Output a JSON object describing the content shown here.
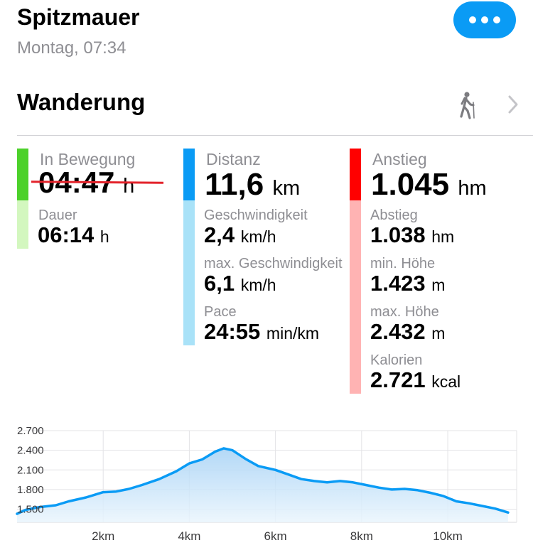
{
  "header": {
    "title": "Spitzmauer",
    "subtitle": "Montag, 07:34",
    "more_icon": "more-dots-icon"
  },
  "activity": {
    "type": "Wanderung",
    "icon": "hiker-icon",
    "chevron_icon": "chevron-right-icon"
  },
  "colors": {
    "accent_blue": "#0a9bf5",
    "green": "#4cd12a",
    "green_light": "#d3f7bf",
    "blue_light": "#a9e2f8",
    "red": "#ff0000",
    "red_light": "#ffb3b3",
    "strike_red": "#e3232b"
  },
  "stats": {
    "moving": {
      "label": "In Bewegung",
      "value": "04:47",
      "unit": "h"
    },
    "duration": {
      "label": "Dauer",
      "value": "06:14",
      "unit": "h"
    },
    "distance": {
      "label": "Distanz",
      "value": "11,6",
      "unit": "km"
    },
    "speed": {
      "label": "Geschwindigkeit",
      "value": "2,4",
      "unit": "km/h"
    },
    "max_speed": {
      "label": "max. Geschwindigkeit",
      "value": "6,1",
      "unit": "km/h"
    },
    "pace": {
      "label": "Pace",
      "value": "24:55",
      "unit": "min/km"
    },
    "ascent": {
      "label": "Anstieg",
      "value": "1.045",
      "unit": "hm"
    },
    "descent": {
      "label": "Abstieg",
      "value": "1.038",
      "unit": "hm"
    },
    "min_height": {
      "label": "min. Höhe",
      "value": "1.423",
      "unit": "m"
    },
    "max_height": {
      "label": "max. Höhe",
      "value": "2.432",
      "unit": "m"
    },
    "calories": {
      "label": "Kalorien",
      "value": "2.721",
      "unit": "kcal"
    }
  },
  "chart_data": {
    "type": "area",
    "title": "",
    "xlabel": "",
    "ylabel": "",
    "x_ticks": [
      "2km",
      "4km",
      "6km",
      "8km",
      "10km"
    ],
    "y_ticks": [
      "1.500",
      "1.800",
      "2.100",
      "2.400",
      "2.700"
    ],
    "xlim": [
      0,
      11.6
    ],
    "ylim": [
      1300,
      2700
    ],
    "grid": true,
    "x": [
      0,
      0.2,
      0.5,
      0.9,
      1.2,
      1.6,
      2.0,
      2.3,
      2.6,
      2.9,
      3.3,
      3.7,
      4.0,
      4.3,
      4.6,
      4.8,
      5.0,
      5.3,
      5.6,
      6.0,
      6.3,
      6.6,
      6.9,
      7.2,
      7.5,
      7.8,
      8.1,
      8.4,
      8.7,
      9.0,
      9.3,
      9.6,
      9.9,
      10.2,
      10.5,
      10.8,
      11.1,
      11.4
    ],
    "y": [
      1430,
      1490,
      1530,
      1560,
      1620,
      1680,
      1760,
      1770,
      1810,
      1870,
      1960,
      2080,
      2200,
      2260,
      2380,
      2430,
      2400,
      2270,
      2160,
      2100,
      2030,
      1960,
      1930,
      1910,
      1930,
      1910,
      1870,
      1830,
      1800,
      1810,
      1790,
      1750,
      1700,
      1620,
      1590,
      1550,
      1510,
      1450
    ]
  }
}
